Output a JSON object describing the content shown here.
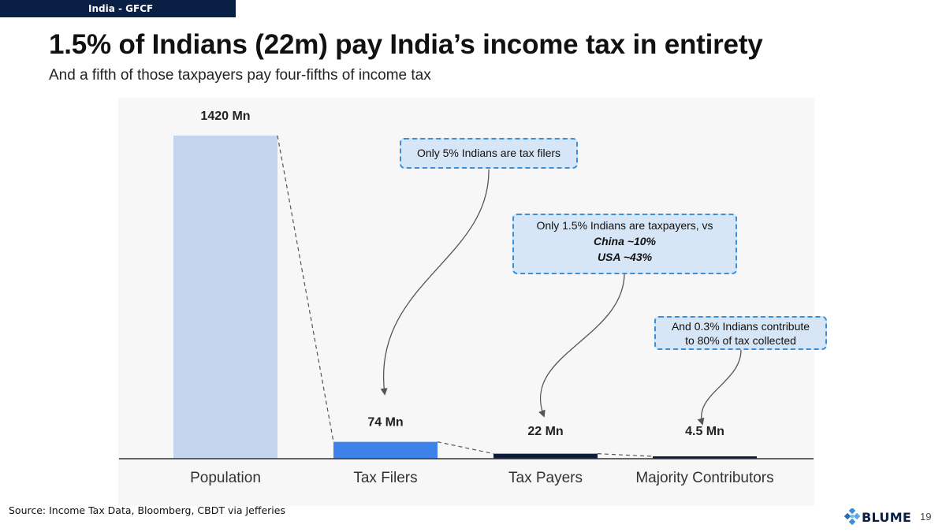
{
  "header": {
    "section_tag": "India - GFCF",
    "title": "1.5% of Indians (22m) pay India’s income tax in entirety",
    "subtitle": "And a fifth of those taxpayers pay four-fifths of income tax"
  },
  "callouts": {
    "filers": {
      "text": "Only 5% Indians are tax filers"
    },
    "taxpayers": {
      "line1": "Only 1.5% Indians  are taxpayers, vs",
      "line2": "China ~10%",
      "line3": "USA ~43%"
    },
    "contributors": {
      "line1": "And 0.3% Indians contribute",
      "line2": "to 80% of tax collected"
    }
  },
  "footer": {
    "source": "Source: Income Tax Data, Bloomberg,  CBDT via Jefferies",
    "logo_text": "BLUME",
    "page_number": "19"
  },
  "colors": {
    "population": "#c2d5ec",
    "tax_filers": "#3d82ea",
    "tax_payers": "#0d1e3a",
    "majority_contributors": "#0d1e3a",
    "callout_fill": "#d6e6f6",
    "callout_border": "#3a8fd6",
    "header_bar": "#0a1f44"
  },
  "chart_data": {
    "type": "bar",
    "categories": [
      "Population",
      "Tax Filers",
      "Tax Payers",
      "Majority Contributors"
    ],
    "values": [
      1420,
      74,
      22,
      4.5
    ],
    "data_labels": [
      "1420 Mn",
      "74 Mn",
      "22 Mn",
      "4.5 Mn"
    ],
    "unit": "Mn",
    "ylim": [
      0,
      1420
    ],
    "grid": false,
    "legend": "none"
  }
}
